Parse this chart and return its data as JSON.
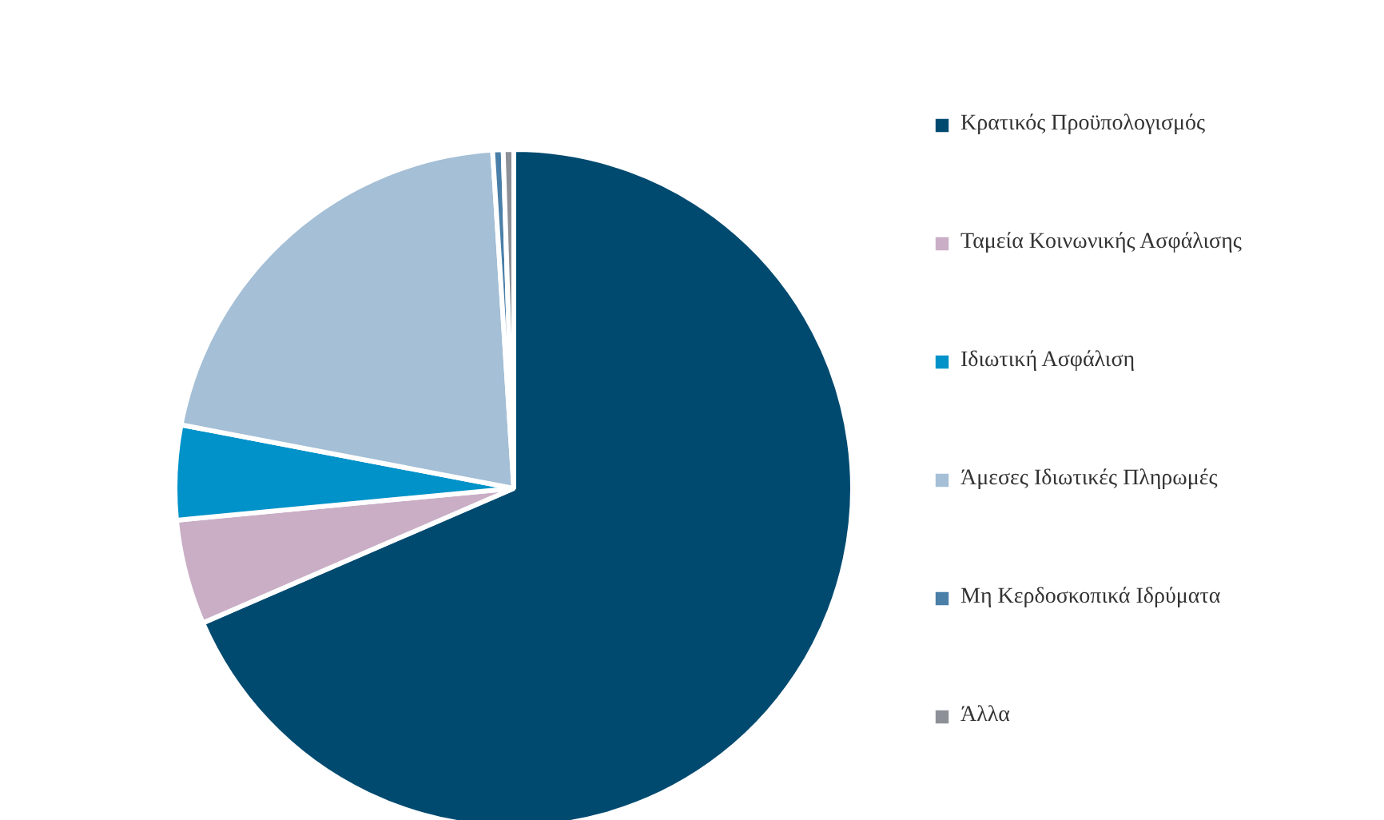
{
  "chart_data": {
    "type": "pie",
    "categories": [
      "Κρατικός Προϋπολογισμός",
      "Ταμεία Κοινωνικής Ασφάλισης",
      "Ιδιωτική Ασφάλιση",
      "Άμεσες Ιδιωτικές Πληρωμές",
      "Μη Κερδοσκοπικά Ιδρύματα",
      "Άλλα"
    ],
    "values": [
      68.5,
      5,
      4.5,
      21,
      0.5,
      0.5
    ],
    "colors": [
      "#004a70",
      "#c9aec6",
      "#0092c8",
      "#a4bfd6",
      "#4a7fa8",
      "#8e9098"
    ],
    "legend": "right"
  }
}
